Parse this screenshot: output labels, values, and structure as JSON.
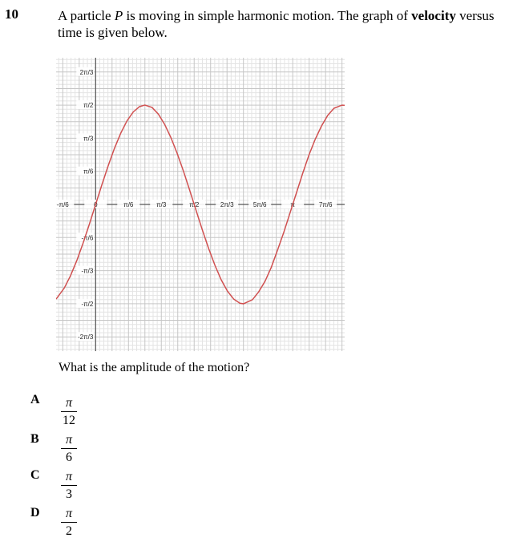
{
  "question": {
    "number": "10",
    "text_part1": "A particle ",
    "particle": "P",
    "text_part2": " is moving in simple harmonic motion. The graph of ",
    "bold_word": "velocity",
    "text_part3": " versus time is given below.",
    "prompt": "What is the amplitude of the motion?"
  },
  "options": [
    {
      "letter": "A",
      "numerator": "π",
      "denominator": "12"
    },
    {
      "letter": "B",
      "numerator": "π",
      "denominator": "6"
    },
    {
      "letter": "C",
      "numerator": "π",
      "denominator": "3"
    },
    {
      "letter": "D",
      "numerator": "π",
      "denominator": "2"
    }
  ],
  "colors": {
    "curve": "#d05050",
    "grid_minor": "#e4e4e4",
    "grid_major": "#c6c6c6",
    "axis": "#555555"
  },
  "chart_data": {
    "type": "line",
    "x_tick_labels": [
      "-π/6",
      "0",
      "π/6",
      "π/3",
      "π/2",
      "2π/3",
      "5π/6",
      "π",
      "7π/6"
    ],
    "y_tick_labels": [
      "2π/3",
      "π/2",
      "π/3",
      "π/6",
      "-π/6",
      "-π/3",
      "-π/2",
      "-2π/3"
    ],
    "x_tick_values": [
      -0.5236,
      0,
      0.5236,
      1.0472,
      1.5708,
      2.0944,
      2.618,
      3.1416,
      3.6652
    ],
    "y_tick_values": [
      2.0944,
      1.5708,
      1.0472,
      0.5236,
      -0.5236,
      -1.0472,
      -1.5708,
      -2.0944
    ],
    "xlim": [
      -0.63,
      3.97
    ],
    "ylim": [
      -2.32,
      2.32
    ],
    "grid": true,
    "series": [
      {
        "function": "v(t) = (π/2)·sin(2t)",
        "amplitude": 1.5708,
        "angular_frequency": 2,
        "x": [
          -0.63,
          -0.5,
          -0.4,
          -0.3,
          -0.2,
          -0.1,
          0,
          0.1,
          0.2,
          0.3,
          0.4,
          0.5,
          0.6,
          0.7,
          0.785,
          0.9,
          1.0,
          1.1,
          1.2,
          1.3,
          1.4,
          1.5,
          1.571,
          1.7,
          1.8,
          1.9,
          2.0,
          2.1,
          2.2,
          2.3,
          2.356,
          2.5,
          2.6,
          2.7,
          2.8,
          2.9,
          3.0,
          3.1,
          3.142,
          3.3,
          3.4,
          3.5,
          3.6,
          3.7,
          3.8,
          3.927,
          3.97
        ],
        "y": [
          -1.497,
          -1.322,
          -1.126,
          -0.887,
          -0.612,
          -0.312,
          0,
          0.312,
          0.612,
          0.887,
          1.126,
          1.322,
          1.463,
          1.547,
          1.571,
          1.533,
          1.428,
          1.267,
          1.057,
          0.807,
          0.527,
          0.222,
          0,
          -0.4,
          -0.692,
          -0.957,
          -1.189,
          -1.369,
          -1.496,
          -1.563,
          -1.571,
          -1.506,
          -1.381,
          -1.216,
          -0.994,
          -0.721,
          -0.439,
          -0.131,
          0,
          0.49,
          0.78,
          1.03,
          1.239,
          1.409,
          1.521,
          1.571,
          1.567
        ]
      }
    ]
  }
}
